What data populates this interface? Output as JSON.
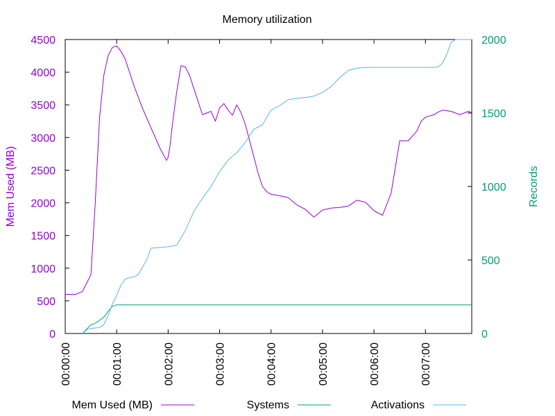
{
  "chart_data": {
    "type": "line",
    "title": "Memory utilization",
    "ylabel": "Mem Used (MB)",
    "y2label": "Records",
    "ylim": [
      0,
      4500
    ],
    "y2lim": [
      0,
      2000
    ],
    "xlim": [
      0,
      474
    ],
    "x_ticks": [
      0,
      60,
      120,
      180,
      240,
      300,
      360,
      420
    ],
    "x_tick_labels": [
      "00:00:00",
      "00:01:00",
      "00:02:00",
      "00:03:00",
      "00:04:00",
      "00:05:00",
      "00:06:00",
      "00:07:00"
    ],
    "y_ticks": [
      0,
      500,
      1000,
      1500,
      2000,
      2500,
      3000,
      3500,
      4000,
      4500
    ],
    "y2_ticks": [
      0,
      500,
      1000,
      1500,
      2000
    ],
    "grid": false,
    "legend_position": "bottom",
    "series": [
      {
        "name": "Mem Used (MB)",
        "axis": "y",
        "color": "#9400d3",
        "x": [
          0,
          12,
          20,
          25,
          30,
          35,
          40,
          45,
          50,
          55,
          60,
          65,
          70,
          80,
          90,
          100,
          110,
          118,
          120,
          122,
          125,
          130,
          135,
          140,
          145,
          150,
          155,
          160,
          170,
          175,
          180,
          185,
          190,
          195,
          200,
          205,
          210,
          215,
          220,
          225,
          230,
          235,
          240,
          250,
          260,
          270,
          280,
          290,
          300,
          310,
          320,
          330,
          340,
          350,
          360,
          370,
          380,
          390,
          400,
          410,
          415,
          420,
          425,
          430,
          435,
          440,
          450,
          460,
          470,
          474
        ],
        "values": [
          600,
          600,
          640,
          770,
          900,
          2000,
          3300,
          3950,
          4250,
          4380,
          4400,
          4320,
          4200,
          3800,
          3450,
          3150,
          2850,
          2650,
          2700,
          2850,
          3200,
          3700,
          4100,
          4080,
          3950,
          3750,
          3550,
          3350,
          3400,
          3250,
          3450,
          3520,
          3420,
          3340,
          3500,
          3380,
          3200,
          2950,
          2700,
          2450,
          2250,
          2170,
          2130,
          2110,
          2080,
          1970,
          1900,
          1780,
          1890,
          1920,
          1930,
          1950,
          2040,
          2010,
          1880,
          1810,
          2150,
          2950,
          2950,
          3100,
          3250,
          3310,
          3330,
          3350,
          3390,
          3420,
          3400,
          3350,
          3400,
          3380
        ]
      },
      {
        "name": "Systems",
        "axis": "y2",
        "color": "#009e73",
        "x": [
          20,
          25,
          30,
          35,
          40,
          45,
          50,
          55,
          60,
          474
        ],
        "values": [
          0,
          30,
          60,
          70,
          90,
          110,
          150,
          185,
          195,
          195
        ]
      },
      {
        "name": "Activations",
        "axis": "y2",
        "color": "#56b4e9",
        "x": [
          20,
          25,
          30,
          40,
          45,
          50,
          55,
          60,
          65,
          70,
          75,
          80,
          85,
          90,
          95,
          100,
          110,
          120,
          130,
          140,
          150,
          160,
          170,
          180,
          190,
          200,
          210,
          220,
          230,
          240,
          250,
          260,
          270,
          280,
          290,
          300,
          310,
          320,
          330,
          340,
          350,
          360,
          370,
          380,
          390,
          400,
          410,
          420,
          430,
          435,
          440,
          445,
          450,
          455,
          460,
          465,
          470,
          474
        ],
        "values": [
          0,
          25,
          35,
          40,
          60,
          120,
          200,
          260,
          330,
          370,
          380,
          385,
          400,
          450,
          500,
          580,
          585,
          590,
          600,
          700,
          830,
          920,
          1000,
          1100,
          1180,
          1230,
          1300,
          1390,
          1420,
          1520,
          1550,
          1590,
          1600,
          1605,
          1615,
          1640,
          1680,
          1740,
          1790,
          1805,
          1810,
          1810,
          1810,
          1810,
          1810,
          1810,
          1810,
          1810,
          1810,
          1815,
          1840,
          1900,
          1980,
          2000,
          2000,
          2000,
          2000,
          2000
        ]
      }
    ]
  }
}
